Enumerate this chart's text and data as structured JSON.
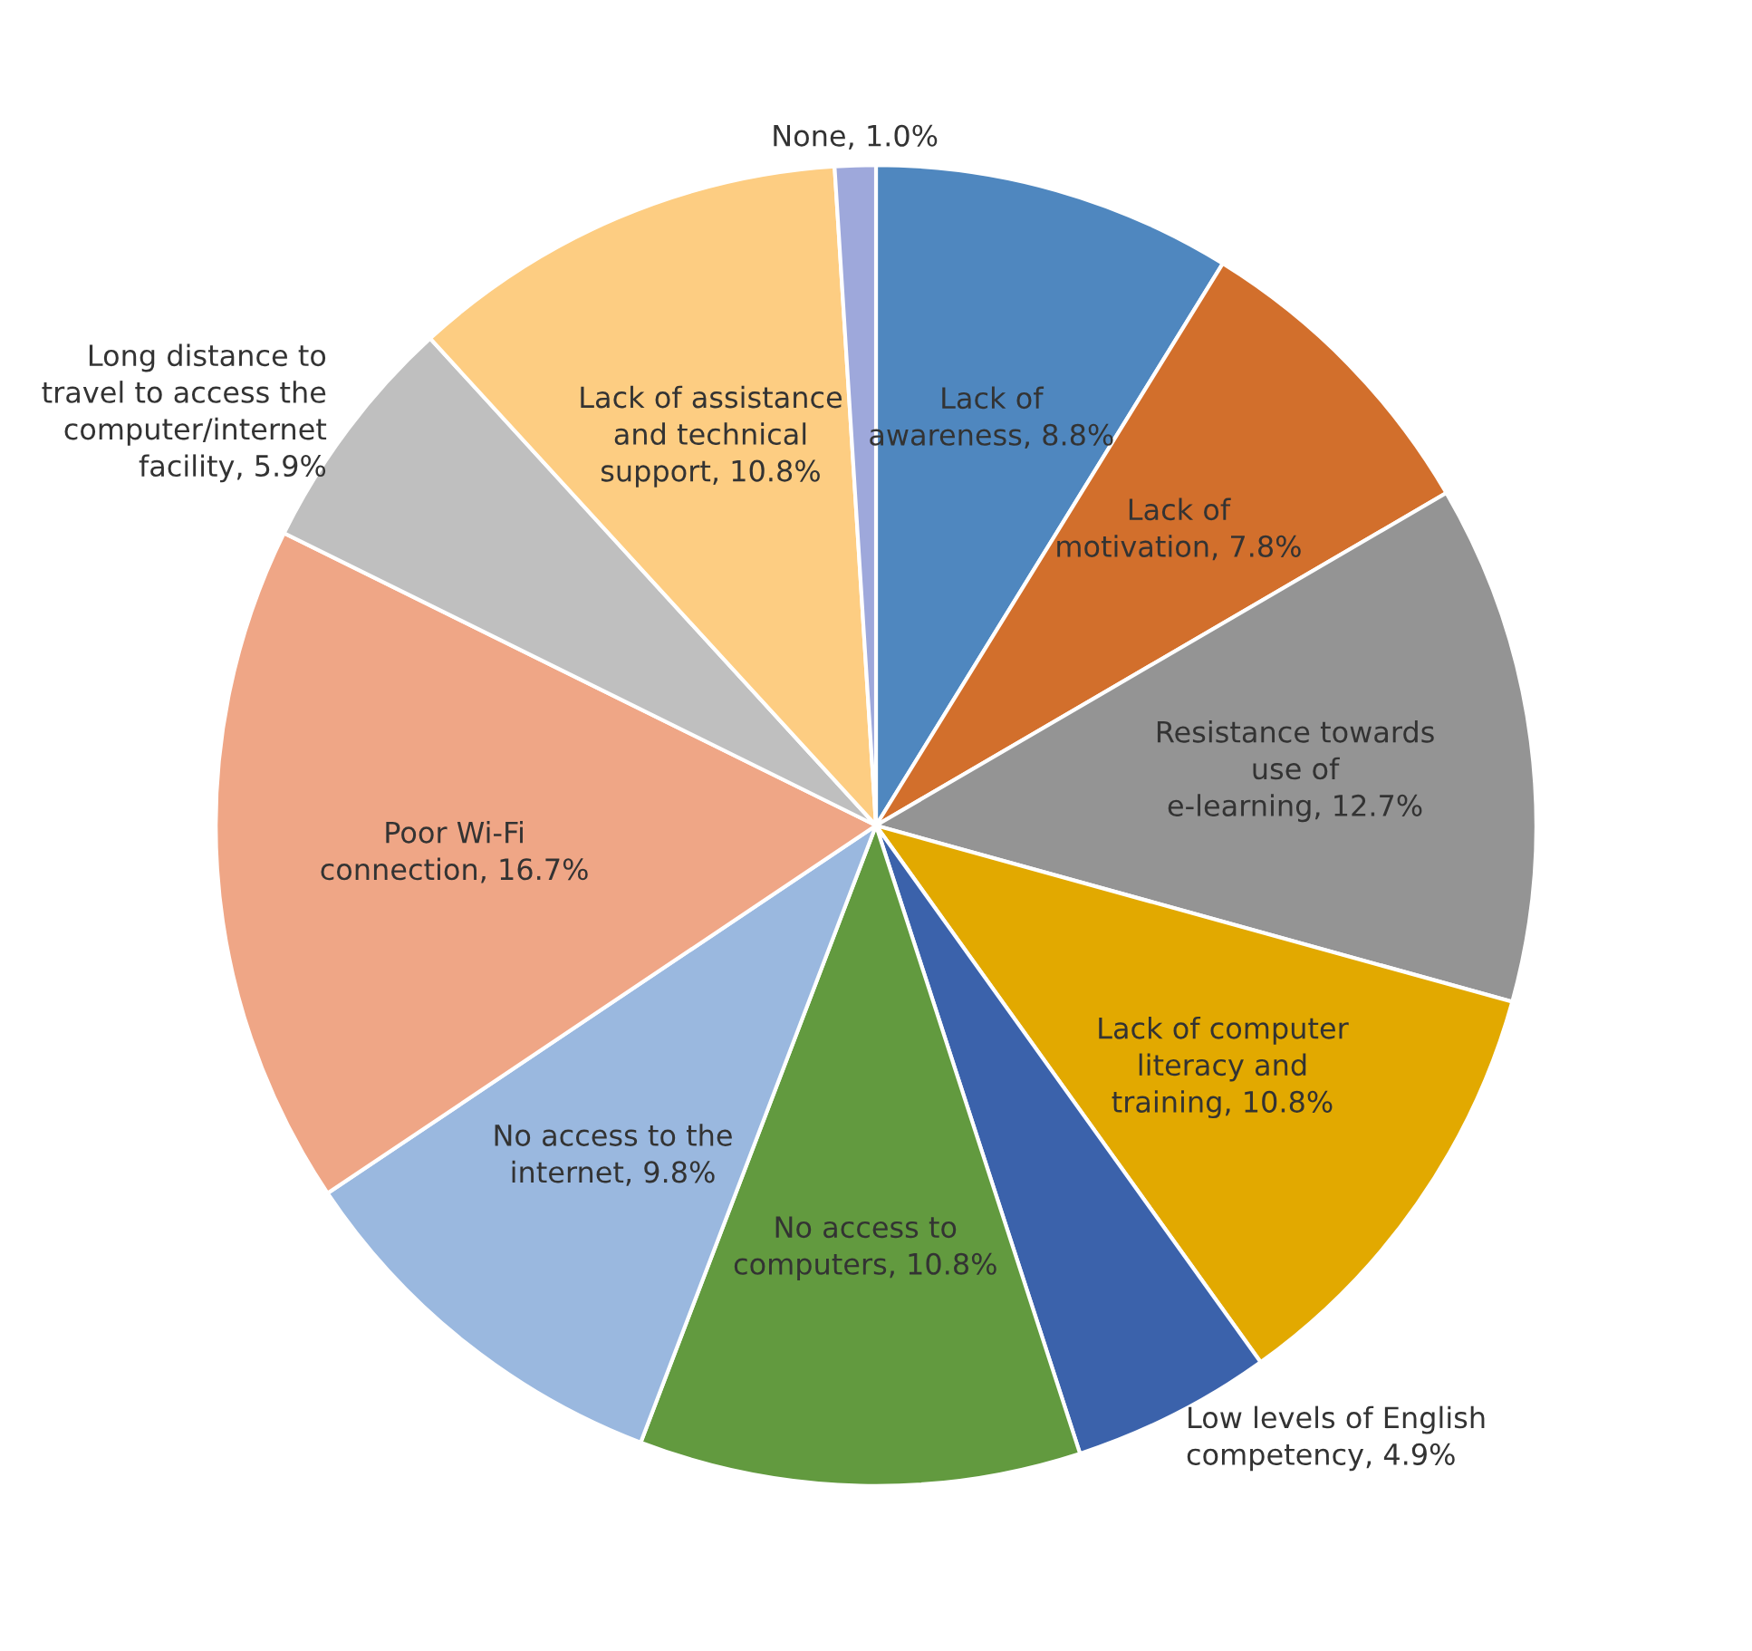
{
  "chart_data": {
    "type": "pie",
    "categories": [
      "Lack of awareness",
      "Lack of motivation",
      "Resistance towards use of e-learning",
      "Lack of computer literacy and training",
      "Low levels of English competency",
      "No access to computers",
      "No access to the internet",
      "Poor Wi-Fi connection",
      "Long distance to travel to access the computer/internet facility",
      "Lack of assistance and technical support",
      "None"
    ],
    "values": [
      8.8,
      7.8,
      12.7,
      10.8,
      4.9,
      10.8,
      9.8,
      16.7,
      5.9,
      10.8,
      1.0
    ],
    "value_labels": [
      "8.8%",
      "7.8%",
      "12.7%",
      "10.8%",
      "4.9%",
      "10.8%",
      "9.8%",
      "16.7%",
      "5.9%",
      "10.8%",
      "1.0%"
    ],
    "colors": [
      "#4f87bf",
      "#d26f2c",
      "#949494",
      "#e2a900",
      "#3b62ab",
      "#629a3f",
      "#9ab8df",
      "#efa686",
      "#bfbfbf",
      "#fdcd82",
      "#9ea8db"
    ],
    "legend": false
  }
}
